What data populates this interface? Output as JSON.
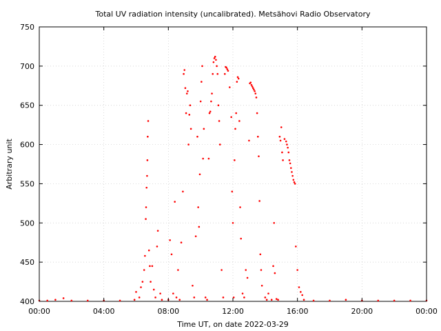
{
  "chart_data": {
    "type": "scatter",
    "title": "Total UV radiation intensity (uncalibrated). Metsähovi Radio Observatory",
    "xlabel": "Time UT, on date 2022-03-29",
    "ylabel": "Arbitrary unit",
    "x_unit": "hours UT",
    "xlim": [
      0,
      24
    ],
    "ylim": [
      400,
      750
    ],
    "x_ticks": [
      0,
      4,
      8,
      12,
      16,
      20,
      24
    ],
    "x_tick_labels": [
      "00:00",
      "04:00",
      "08:00",
      "12:00",
      "16:00",
      "20:00",
      "00:00"
    ],
    "y_ticks": [
      400,
      450,
      500,
      550,
      600,
      650,
      700,
      750
    ],
    "y_tick_labels": [
      "400",
      "450",
      "500",
      "550",
      "600",
      "650",
      "700",
      "750"
    ],
    "grid": true,
    "point_color": "#ff0000",
    "series": [
      {
        "points": [
          [
            0.0,
            401
          ],
          [
            0.5,
            401
          ],
          [
            1.0,
            402
          ],
          [
            1.5,
            404
          ],
          [
            2.0,
            401
          ],
          [
            3.0,
            401
          ],
          [
            4.0,
            401
          ],
          [
            5.0,
            401
          ],
          [
            5.9,
            402
          ],
          [
            6.0,
            412
          ],
          [
            6.2,
            405
          ],
          [
            6.3,
            418
          ],
          [
            6.4,
            425
          ],
          [
            6.5,
            440
          ],
          [
            6.55,
            458
          ],
          [
            6.6,
            505
          ],
          [
            6.62,
            520
          ],
          [
            6.65,
            545
          ],
          [
            6.68,
            560
          ],
          [
            6.7,
            580
          ],
          [
            6.72,
            610
          ],
          [
            6.75,
            630
          ],
          [
            6.8,
            465
          ],
          [
            6.85,
            445
          ],
          [
            6.9,
            425
          ],
          [
            7.0,
            445
          ],
          [
            7.1,
            415
          ],
          [
            7.2,
            405
          ],
          [
            7.3,
            470
          ],
          [
            7.35,
            490
          ],
          [
            7.5,
            410
          ],
          [
            7.6,
            402
          ],
          [
            8.0,
            402
          ],
          [
            8.1,
            478
          ],
          [
            8.2,
            460
          ],
          [
            8.3,
            410
          ],
          [
            8.4,
            527
          ],
          [
            8.5,
            405
          ],
          [
            8.6,
            440
          ],
          [
            8.7,
            402
          ],
          [
            8.8,
            475
          ],
          [
            8.9,
            540
          ],
          [
            8.95,
            690
          ],
          [
            9.0,
            695
          ],
          [
            9.05,
            672
          ],
          [
            9.1,
            640
          ],
          [
            9.15,
            665
          ],
          [
            9.2,
            668
          ],
          [
            9.25,
            600
          ],
          [
            9.3,
            638
          ],
          [
            9.35,
            650
          ],
          [
            9.4,
            620
          ],
          [
            9.5,
            420
          ],
          [
            9.6,
            405
          ],
          [
            9.7,
            483
          ],
          [
            9.8,
            610
          ],
          [
            9.85,
            520
          ],
          [
            9.9,
            495
          ],
          [
            9.95,
            562
          ],
          [
            10.0,
            655
          ],
          [
            10.05,
            680
          ],
          [
            10.1,
            700
          ],
          [
            10.15,
            582
          ],
          [
            10.2,
            620
          ],
          [
            10.3,
            405
          ],
          [
            10.4,
            402
          ],
          [
            10.5,
            582
          ],
          [
            10.55,
            640
          ],
          [
            10.6,
            642
          ],
          [
            10.65,
            655
          ],
          [
            10.7,
            665
          ],
          [
            10.75,
            690
          ],
          [
            10.8,
            705
          ],
          [
            10.85,
            710
          ],
          [
            10.9,
            712
          ],
          [
            10.95,
            708
          ],
          [
            11.0,
            700
          ],
          [
            11.05,
            690
          ],
          [
            11.1,
            650
          ],
          [
            11.15,
            630
          ],
          [
            11.2,
            600
          ],
          [
            11.3,
            440
          ],
          [
            11.4,
            405
          ],
          [
            11.5,
            690
          ],
          [
            11.55,
            699
          ],
          [
            11.6,
            698
          ],
          [
            11.65,
            696
          ],
          [
            11.7,
            694
          ],
          [
            11.8,
            673
          ],
          [
            11.9,
            635
          ],
          [
            11.95,
            540
          ],
          [
            12.0,
            500
          ],
          [
            12.05,
            405
          ],
          [
            12.1,
            580
          ],
          [
            12.15,
            620
          ],
          [
            12.2,
            640
          ],
          [
            12.25,
            680
          ],
          [
            12.3,
            686
          ],
          [
            12.35,
            684
          ],
          [
            12.4,
            630
          ],
          [
            12.45,
            520
          ],
          [
            12.5,
            480
          ],
          [
            12.6,
            410
          ],
          [
            12.7,
            405
          ],
          [
            12.8,
            440
          ],
          [
            12.9,
            430
          ],
          [
            13.0,
            605
          ],
          [
            13.05,
            678
          ],
          [
            13.1,
            679
          ],
          [
            13.15,
            676
          ],
          [
            13.2,
            674
          ],
          [
            13.25,
            672
          ],
          [
            13.3,
            670
          ],
          [
            13.35,
            668
          ],
          [
            13.4,
            665
          ],
          [
            13.45,
            660
          ],
          [
            13.5,
            640
          ],
          [
            13.55,
            610
          ],
          [
            13.6,
            585
          ],
          [
            13.65,
            528
          ],
          [
            13.7,
            460
          ],
          [
            13.75,
            440
          ],
          [
            13.8,
            420
          ],
          [
            14.0,
            405
          ],
          [
            14.1,
            402
          ],
          [
            14.2,
            410
          ],
          [
            14.4,
            402
          ],
          [
            14.5,
            445
          ],
          [
            14.55,
            500
          ],
          [
            14.6,
            436
          ],
          [
            14.7,
            403
          ],
          [
            14.8,
            402
          ],
          [
            14.9,
            610
          ],
          [
            14.95,
            605
          ],
          [
            15.0,
            622
          ],
          [
            15.05,
            590
          ],
          [
            15.1,
            580
          ],
          [
            15.2,
            607
          ],
          [
            15.3,
            604
          ],
          [
            15.35,
            600
          ],
          [
            15.4,
            596
          ],
          [
            15.45,
            590
          ],
          [
            15.5,
            580
          ],
          [
            15.55,
            576
          ],
          [
            15.6,
            570
          ],
          [
            15.65,
            565
          ],
          [
            15.7,
            560
          ],
          [
            15.75,
            555
          ],
          [
            15.8,
            552
          ],
          [
            15.85,
            550
          ],
          [
            15.9,
            470
          ],
          [
            16.0,
            440
          ],
          [
            16.1,
            418
          ],
          [
            16.2,
            412
          ],
          [
            16.3,
            408
          ],
          [
            16.4,
            402
          ],
          [
            17.0,
            401
          ],
          [
            18.0,
            401
          ],
          [
            19.0,
            402
          ],
          [
            20.0,
            401
          ],
          [
            21.0,
            401
          ],
          [
            22.0,
            401
          ],
          [
            23.0,
            401
          ],
          [
            24.0,
            401
          ]
        ]
      }
    ]
  }
}
